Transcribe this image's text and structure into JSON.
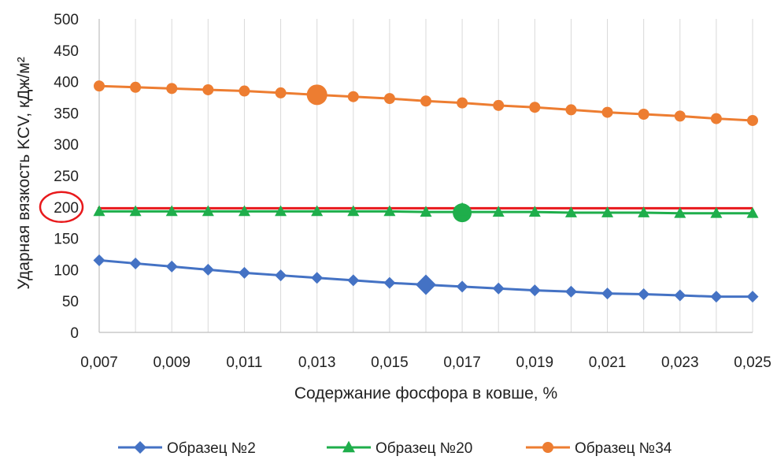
{
  "chart_data": {
    "type": "line",
    "xlabel": "Содержание фосфора в ковше, %",
    "ylabel": "Ударная вязкость KCV, кДж/м²",
    "x": [
      0.007,
      0.008,
      0.009,
      0.01,
      0.011,
      0.012,
      0.013,
      0.014,
      0.015,
      0.016,
      0.017,
      0.018,
      0.019,
      0.02,
      0.021,
      0.022,
      0.023,
      0.024,
      0.025
    ],
    "xlim": [
      0.007,
      0.025
    ],
    "ylim": [
      0,
      500
    ],
    "x_ticks": [
      0.007,
      0.009,
      0.011,
      0.013,
      0.015,
      0.017,
      0.019,
      0.021,
      0.023,
      0.025
    ],
    "x_tick_labels": [
      "0,007",
      "0,009",
      "0,011",
      "0,013",
      "0,015",
      "0,017",
      "0,019",
      "0,021",
      "0,023",
      "0,025"
    ],
    "y_ticks": [
      0,
      50,
      100,
      150,
      200,
      250,
      300,
      350,
      400,
      450,
      500
    ],
    "y_tick_labels": [
      "0",
      "50",
      "100",
      "150",
      "200",
      "250",
      "300",
      "350",
      "400",
      "450",
      "500"
    ],
    "grid": "vertical",
    "legend_position": "bottom",
    "series": [
      {
        "name": "Образец №2",
        "color": "#4472C4",
        "marker": "diamond",
        "values": [
          115,
          110,
          105,
          100,
          95,
          91,
          87,
          83,
          79,
          76,
          73,
          70,
          67,
          65,
          62,
          61,
          59,
          57,
          57
        ],
        "highlight_x": 0.016,
        "highlight_value": 76
      },
      {
        "name": "Образец №20",
        "color": "#1FAE4B",
        "marker": "triangle",
        "values": [
          193,
          193,
          193,
          193,
          193,
          193,
          193,
          193,
          193,
          192,
          192,
          192,
          192,
          191,
          191,
          191,
          190,
          190,
          190
        ],
        "highlight_x": 0.017,
        "highlight_value": 192
      },
      {
        "name": "Образец №34",
        "color": "#ED7D31",
        "marker": "circle",
        "values": [
          393,
          391,
          389,
          387,
          385,
          382,
          379,
          376,
          373,
          369,
          366,
          362,
          359,
          355,
          351,
          348,
          345,
          341,
          338
        ],
        "highlight_x": 0.013,
        "highlight_value": 379
      }
    ],
    "threshold_line": {
      "value": 198,
      "color": "#E8191C"
    },
    "annotation": {
      "target_tick": "200",
      "shape": "ellipse",
      "color": "#E8191C"
    }
  }
}
